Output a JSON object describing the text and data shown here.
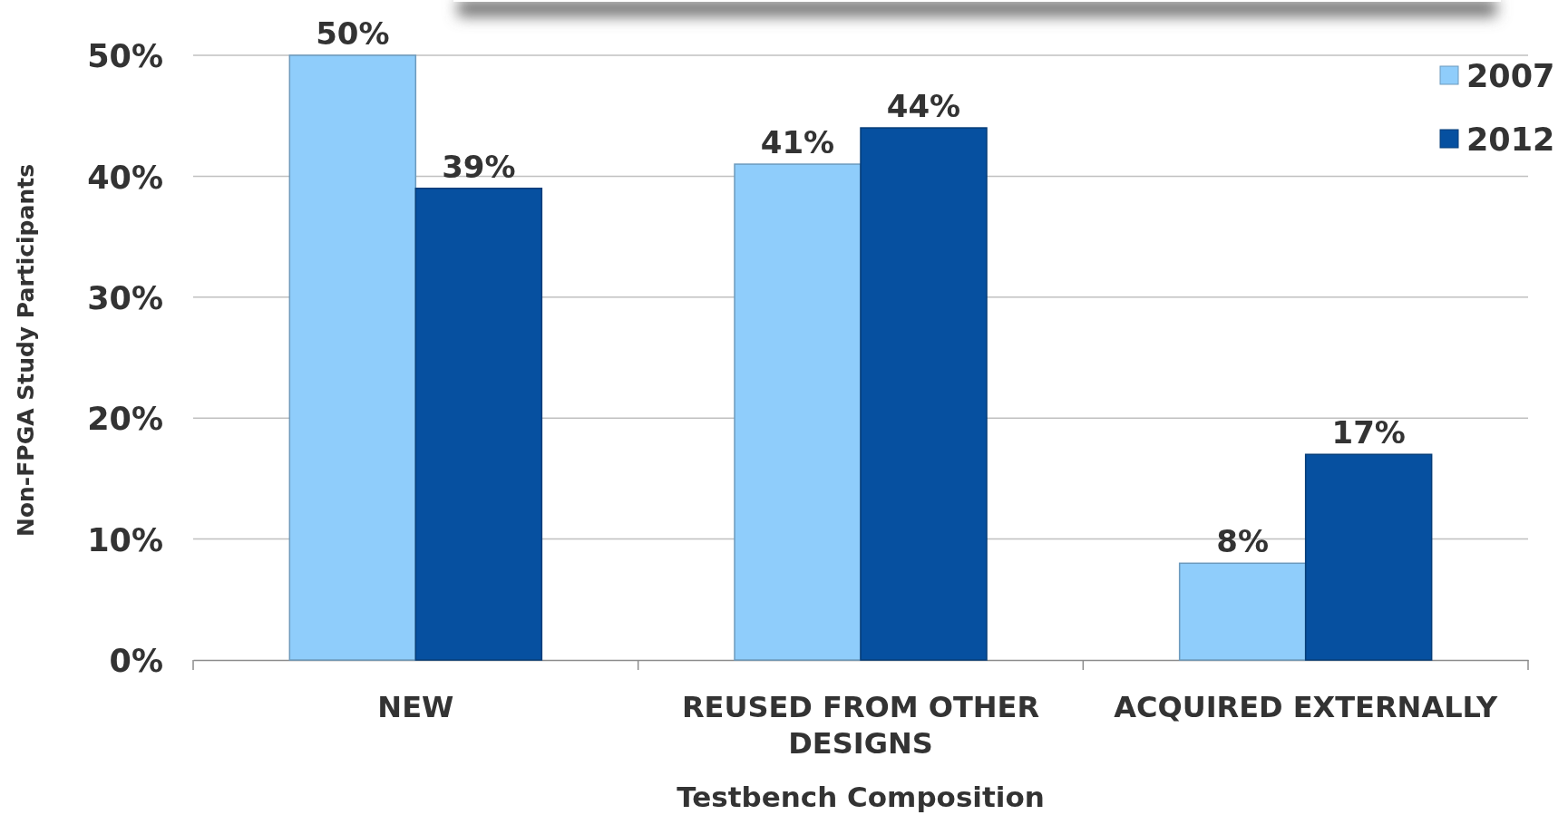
{
  "chart_data": {
    "type": "bar",
    "xlabel": "Testbench Composition",
    "ylabel": "Non-FPGA Study Participants",
    "categories": [
      "NEW",
      "REUSED FROM OTHER DESIGNS",
      "ACQUIRED EXTERNALLY"
    ],
    "series": [
      {
        "name": "2007",
        "color": "#8fcdfb",
        "values": [
          50,
          41,
          8
        ],
        "value_labels": [
          "50%",
          "41%",
          "8%"
        ]
      },
      {
        "name": "2012",
        "color": "#0650a0",
        "values": [
          39,
          44,
          17
        ],
        "value_labels": [
          "39%",
          "44%",
          "17%"
        ]
      }
    ],
    "ylim": [
      0,
      50
    ],
    "yticks": [
      {
        "value": 0,
        "label": "0%"
      },
      {
        "value": 10,
        "label": "10%"
      },
      {
        "value": 20,
        "label": "20%"
      },
      {
        "value": 30,
        "label": "30%"
      },
      {
        "value": 40,
        "label": "40%"
      },
      {
        "value": 50,
        "label": "50%"
      }
    ],
    "grid": "y",
    "legend": "top right"
  }
}
